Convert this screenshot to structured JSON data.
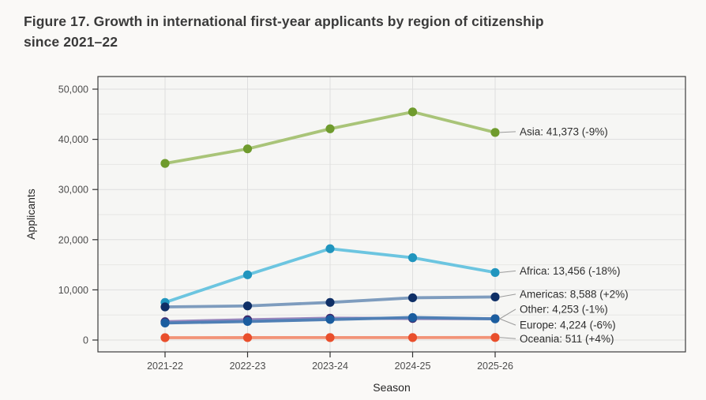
{
  "figure": {
    "title_line1": "Figure 17. Growth in international first-year applicants by region of citizenship",
    "title_line2": "since 2021–22"
  },
  "chart_data": {
    "type": "line",
    "title": "Figure 17. Growth in international first-year applicants by region of citizenship since 2021–22",
    "xlabel": "Season",
    "ylabel": "Applicants",
    "categories": [
      "2021-22",
      "2022-23",
      "2023-24",
      "2024-25",
      "2025-26"
    ],
    "ylim": [
      0,
      50000
    ],
    "y_major_ticks": [
      0,
      10000,
      20000,
      30000,
      40000,
      50000
    ],
    "y_major_tick_labels": [
      "0",
      "10,000",
      "20,000",
      "30,000",
      "40,000",
      "50,000"
    ],
    "y_minor_step": 5000,
    "grid": "major and minor horizontal every 5,000; vertical at each season",
    "legend_position": "end-of-line annotations at right of plot",
    "series": [
      {
        "name": "Asia",
        "values": [
          35200,
          38100,
          42100,
          45465,
          41373
        ],
        "line_color": "#a9c478",
        "point_color": "#6f9b2d",
        "end_label": "Asia: 41,373 (-9%)"
      },
      {
        "name": "Africa",
        "values": [
          7500,
          13000,
          18200,
          16410,
          13456
        ],
        "line_color": "#6cc5e0",
        "point_color": "#2095be",
        "end_label": "Africa: 13,456 (-18%)"
      },
      {
        "name": "Americas",
        "values": [
          6600,
          6800,
          7500,
          8420,
          8588
        ],
        "line_color": "#7e9cbe",
        "point_color": "#0f2f66",
        "end_label": "Americas: 8,588 (+2%)"
      },
      {
        "name": "Other",
        "values": [
          3650,
          4050,
          4350,
          4296,
          4253
        ],
        "line_color": "#9a87bd",
        "point_color": "#3f2a6e",
        "end_label": "Other: 4,253 (-1%)"
      },
      {
        "name": "Europe",
        "values": [
          3400,
          3700,
          4100,
          4494,
          4224
        ],
        "line_color": "#4f7fb5",
        "point_color": "#1b5d9f",
        "end_label": "Europe: 4,224 (-6%)"
      },
      {
        "name": "Oceania",
        "values": [
          470,
          480,
          490,
          491,
          511
        ],
        "line_color": "#f29377",
        "point_color": "#e94f2c",
        "end_label": "Oceania: 511 (+4%)"
      }
    ]
  },
  "colors": {
    "page_background": "#faf9f7",
    "panel_background": "#f6f6f4",
    "grid_major": "#dedede",
    "grid_minor": "#e7e7e5",
    "panel_border": "#3d3d3d",
    "tick_mark": "#333333",
    "leader_line": "#9a9a9a",
    "title_text": "#3a3a3a",
    "tick_text": "#4d4d4d",
    "axis_title_text": "#262626",
    "annotation_text": "#2e2e2e"
  }
}
